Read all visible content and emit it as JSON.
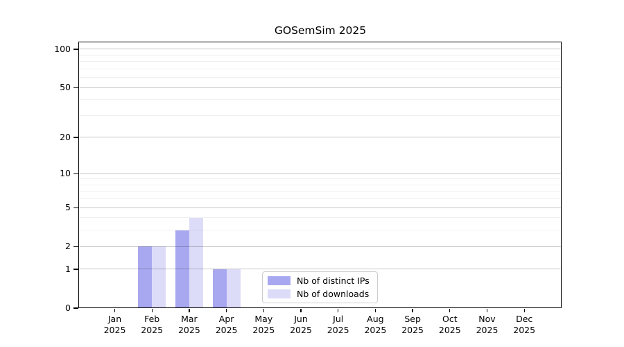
{
  "chart_data": {
    "type": "bar",
    "title": "GOSemSim 2025",
    "categories": [
      "Jan 2025",
      "Feb 2025",
      "Mar 2025",
      "Apr 2025",
      "May 2025",
      "Jun 2025",
      "Jul 2025",
      "Aug 2025",
      "Sep 2025",
      "Oct 2025",
      "Nov 2025",
      "Dec 2025"
    ],
    "series": [
      {
        "name": "Nb of distinct IPs",
        "color": "#a8a8f0",
        "values": [
          0,
          2,
          3,
          1,
          0,
          0,
          0,
          0,
          0,
          0,
          0,
          0
        ]
      },
      {
        "name": "Nb of downloads",
        "color": "#dcdcf8",
        "values": [
          0,
          2,
          4,
          1,
          0,
          0,
          0,
          0,
          0,
          0,
          0,
          0
        ]
      }
    ],
    "y_scale": "log10(1+x)",
    "y_major_ticks": [
      0,
      1,
      2,
      5,
      10,
      20,
      50,
      100
    ],
    "y_minor_gridlines": [
      3,
      4,
      6,
      7,
      8,
      9,
      30,
      40,
      60,
      70,
      80,
      90
    ],
    "y_max": 113.3,
    "ylim": [
      0,
      113.3
    ],
    "xlabel": "",
    "ylabel": "",
    "grid": "horizontal",
    "legend_position": "lower center"
  },
  "colors": {
    "background": "#ffffff",
    "axis": "#000000",
    "major_grid": "#c6c6c6",
    "minor_grid": "#efefef"
  }
}
